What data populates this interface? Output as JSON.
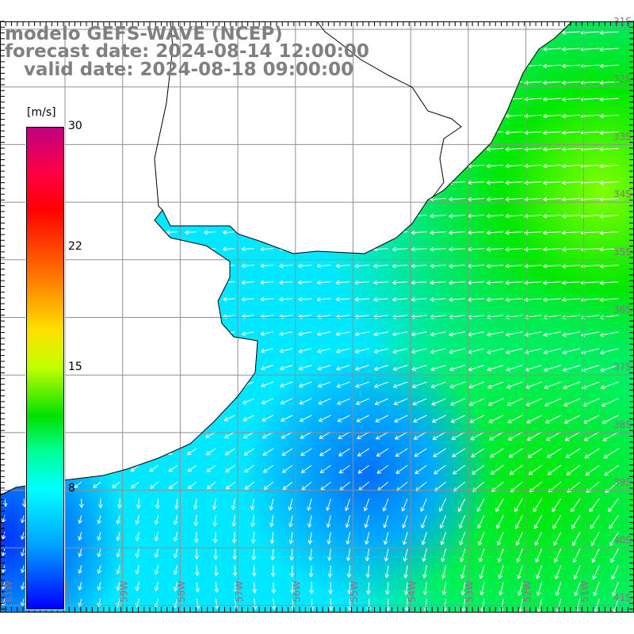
{
  "title": {
    "model": "modelo GEFS-WAVE (NCEP)",
    "forecast": "forecast date: 2024-08-14 12:00:00",
    "valid": "   valid date: 2024-08-18 09:00:00"
  },
  "colorbar": {
    "unit": "[m/s]",
    "ticks": [
      "30",
      "22",
      "15",
      "8"
    ],
    "range": [
      0,
      30
    ]
  },
  "latitudes": [
    "31S",
    "32S",
    "33S",
    "34S",
    "35S",
    "36S",
    "37S",
    "38S",
    "39S",
    "40S",
    "41S"
  ],
  "longitudes": [
    "61W",
    "60W",
    "59W",
    "58W",
    "57W",
    "56W",
    "55W",
    "54W",
    "53W",
    "52W",
    "51W"
  ],
  "colors": {
    "ocean_green": "#00e000",
    "ocean_cyan": "#00eeff",
    "ocean_blue": "#0090ff",
    "deep_blue": "#0040ff",
    "grid": "#909090",
    "coast": "#000000",
    "arrow": "#ffffff"
  }
}
